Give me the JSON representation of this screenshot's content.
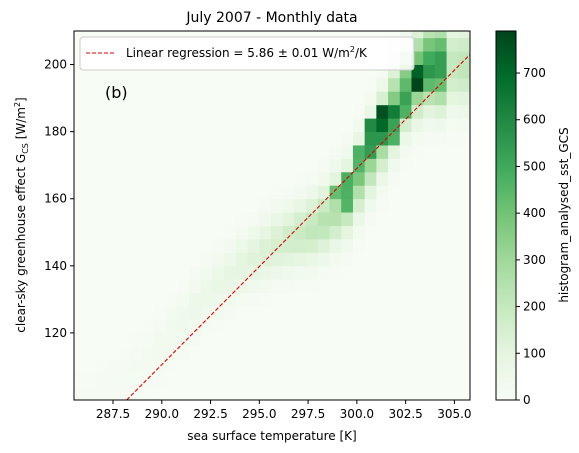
{
  "chart_data": {
    "type": "heatmap",
    "title": "July 2007 - Monthly data",
    "panel_label": "(b)",
    "xlabel": "sea surface temperature [K]",
    "ylabel": {
      "main": "clear-sky greenhouse effect G",
      "sub": "CS",
      "unit_open": " [W/m",
      "unit_sup": "2",
      "unit_close": "]"
    },
    "xlim": [
      285.5,
      305.8
    ],
    "ylim": [
      100,
      210
    ],
    "x_ticks": [
      287.5,
      290.0,
      292.5,
      295.0,
      297.5,
      300.0,
      302.5,
      305.0
    ],
    "x_tick_labels": [
      "287.5",
      "290.0",
      "292.5",
      "295.0",
      "297.5",
      "300.0",
      "302.5",
      "305.0"
    ],
    "y_ticks": [
      120,
      140,
      160,
      180,
      200
    ],
    "y_tick_labels": [
      "120",
      "140",
      "160",
      "180",
      "200"
    ],
    "bin_width_x": 0.6,
    "bin_height_y": 4,
    "colorbar": {
      "label": "histogram_analysed_sst_GCS",
      "range": [
        0,
        790
      ],
      "ticks": [
        0,
        100,
        200,
        300,
        400,
        500,
        600,
        700
      ],
      "tick_labels": [
        "0",
        "100",
        "200",
        "300",
        "400",
        "500",
        "600",
        "700"
      ],
      "colormap": [
        "#f7fcf5",
        "#e5f5e0",
        "#c7e9c0",
        "#a1d99b",
        "#74c476",
        "#41ab5d",
        "#238b45",
        "#006d2c",
        "#00441b"
      ]
    },
    "legend": {
      "position": "top-left",
      "label_main": "Linear regression = 5.86 ± 0.01 W/m",
      "label_sup": "2",
      "label_tail": "/K"
    },
    "regression": {
      "slope": 5.86,
      "uncertainty": 0.01,
      "color": "#e00000",
      "line": [
        [
          288.2,
          100
        ],
        [
          305.8,
          203
        ]
      ]
    },
    "ridge": [
      [
        286.5,
        101
      ],
      [
        289.5,
        113
      ],
      [
        292.0,
        130
      ],
      [
        294.0,
        140
      ],
      [
        296.0,
        147
      ],
      [
        298.0,
        152
      ],
      [
        299.5,
        160
      ],
      [
        300.5,
        171
      ],
      [
        301.5,
        182
      ],
      [
        302.5,
        193
      ],
      [
        303.5,
        200
      ]
    ],
    "hot_cells": [
      {
        "x": 302.8,
        "y": 192,
        "value": 790
      },
      {
        "x": 302.8,
        "y": 196,
        "value": 720
      },
      {
        "x": 303.4,
        "y": 196,
        "value": 560
      },
      {
        "x": 302.2,
        "y": 188,
        "value": 520
      },
      {
        "x": 301.6,
        "y": 184,
        "value": 640
      },
      {
        "x": 301.0,
        "y": 184,
        "value": 760
      },
      {
        "x": 301.0,
        "y": 180,
        "value": 700
      },
      {
        "x": 301.6,
        "y": 180,
        "value": 520
      },
      {
        "x": 300.4,
        "y": 180,
        "value": 600
      },
      {
        "x": 300.4,
        "y": 176,
        "value": 560
      },
      {
        "x": 301.0,
        "y": 176,
        "value": 560
      },
      {
        "x": 300.4,
        "y": 172,
        "value": 540
      },
      {
        "x": 299.8,
        "y": 172,
        "value": 470
      },
      {
        "x": 299.8,
        "y": 168,
        "value": 460
      },
      {
        "x": 299.2,
        "y": 164,
        "value": 480
      },
      {
        "x": 299.8,
        "y": 164,
        "value": 380
      },
      {
        "x": 299.2,
        "y": 160,
        "value": 470
      },
      {
        "x": 298.6,
        "y": 160,
        "value": 420
      },
      {
        "x": 299.2,
        "y": 156,
        "value": 460
      },
      {
        "x": 301.6,
        "y": 176,
        "value": 470
      },
      {
        "x": 302.2,
        "y": 184,
        "value": 470
      },
      {
        "x": 303.4,
        "y": 192,
        "value": 440
      }
    ]
  }
}
